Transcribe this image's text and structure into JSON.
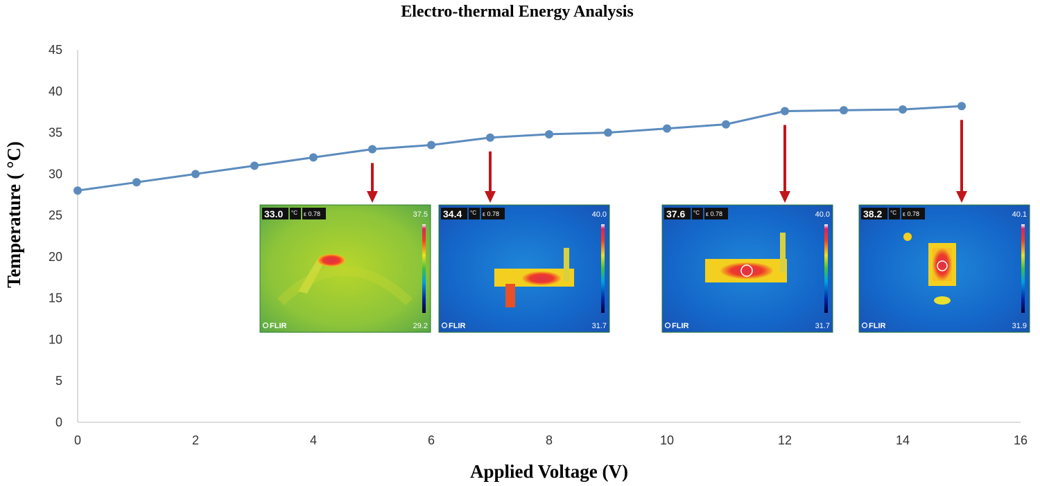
{
  "chart_data": {
    "type": "line",
    "title": "Electro-thermal Energy Analysis",
    "xlabel": "Applied  Voltage (V)",
    "ylabel": "Temperature ( °C)",
    "xlim": [
      0,
      16
    ],
    "ylim": [
      0,
      45
    ],
    "xticks": [
      "0",
      "2",
      "4",
      "6",
      "8",
      "10",
      "12",
      "14",
      "16"
    ],
    "yticks": [
      "0",
      "5",
      "10",
      "15",
      "20",
      "25",
      "30",
      "35",
      "40",
      "45"
    ],
    "grid": false,
    "series": [
      {
        "color": "#5b8bbd",
        "x": [
          0,
          1,
          2,
          3,
          4,
          5,
          6,
          7,
          8,
          9,
          10,
          11,
          12,
          13,
          14,
          15
        ],
        "y": [
          28,
          29,
          30,
          31,
          32,
          33,
          33.5,
          34.4,
          34.8,
          35,
          35.5,
          36,
          37.6,
          37.7,
          37.8,
          38.2
        ]
      }
    ],
    "annotations": [
      {
        "x": 5,
        "reading": "33.0",
        "unit": "°C",
        "emissivity": "ε 0.78",
        "scale_max": "37.5",
        "scale_min": "29.2",
        "brand": "FLIR",
        "palette": "green"
      },
      {
        "x": 7,
        "reading": "34.4",
        "unit": "°C",
        "emissivity": "ε 0.78",
        "scale_max": "40.0",
        "scale_min": "31.7",
        "brand": "FLIR",
        "palette": "blue"
      },
      {
        "x": 12,
        "reading": "37.6",
        "unit": "°C",
        "emissivity": "ε 0.78",
        "scale_max": "40.0",
        "scale_min": "31.7",
        "brand": "FLIR",
        "palette": "blue"
      },
      {
        "x": 15,
        "reading": "38.2",
        "unit": "°C",
        "emissivity": "ε 0.78",
        "scale_max": "40.1",
        "scale_min": "31.9",
        "brand": "FLIR",
        "palette": "blue"
      }
    ],
    "arrow_color": "#c0161b"
  }
}
